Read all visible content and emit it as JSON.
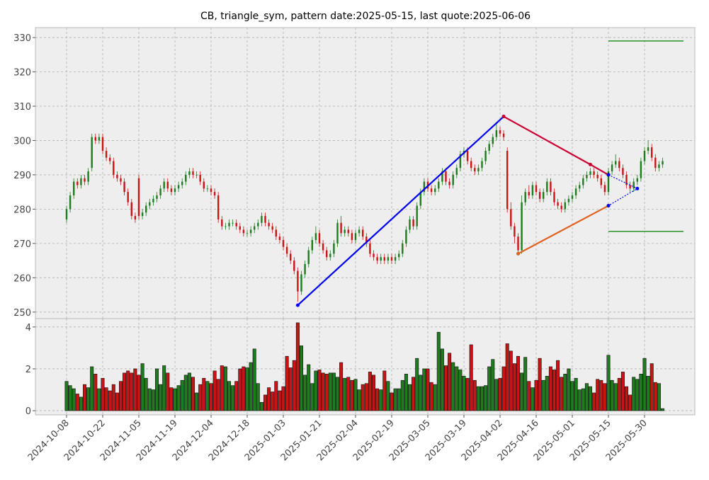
{
  "chart_data": {
    "type": "candlestick",
    "title": "CB, triangle_sym, pattern date:2025-05-15, last quote:2025-06-06",
    "x": [
      "2024-10-08",
      "2024-10-09",
      "2024-10-10",
      "2024-10-11",
      "2024-10-14",
      "2024-10-15",
      "2024-10-16",
      "2024-10-17",
      "2024-10-18",
      "2024-10-21",
      "2024-10-22",
      "2024-10-23",
      "2024-10-24",
      "2024-10-25",
      "2024-10-28",
      "2024-10-29",
      "2024-10-30",
      "2024-10-31",
      "2024-11-01",
      "2024-11-04",
      "2024-11-05",
      "2024-11-06",
      "2024-11-07",
      "2024-11-08",
      "2024-11-11",
      "2024-11-12",
      "2024-11-13",
      "2024-11-14",
      "2024-11-15",
      "2024-11-18",
      "2024-11-19",
      "2024-11-20",
      "2024-11-21",
      "2024-11-22",
      "2024-11-25",
      "2024-11-26",
      "2024-11-27",
      "2024-11-29",
      "2024-12-02",
      "2024-12-03",
      "2024-12-04",
      "2024-12-05",
      "2024-12-06",
      "2024-12-09",
      "2024-12-10",
      "2024-12-11",
      "2024-12-12",
      "2024-12-13",
      "2024-12-16",
      "2024-12-17",
      "2024-12-18",
      "2024-12-19",
      "2024-12-20",
      "2024-12-23",
      "2024-12-24",
      "2024-12-26",
      "2024-12-27",
      "2024-12-30",
      "2024-12-31",
      "2025-01-02",
      "2025-01-03",
      "2025-01-06",
      "2025-01-07",
      "2025-01-08",
      "2025-01-10",
      "2025-01-13",
      "2025-01-14",
      "2025-01-15",
      "2025-01-16",
      "2025-01-17",
      "2025-01-21",
      "2025-01-22",
      "2025-01-23",
      "2025-01-24",
      "2025-01-27",
      "2025-01-28",
      "2025-01-29",
      "2025-01-30",
      "2025-01-31",
      "2025-02-03",
      "2025-02-04",
      "2025-02-05",
      "2025-02-06",
      "2025-02-07",
      "2025-02-10",
      "2025-02-11",
      "2025-02-12",
      "2025-02-13",
      "2025-02-14",
      "2025-02-18",
      "2025-02-19",
      "2025-02-20",
      "2025-02-21",
      "2025-02-24",
      "2025-02-25",
      "2025-02-26",
      "2025-02-27",
      "2025-02-28",
      "2025-03-03",
      "2025-03-04",
      "2025-03-05",
      "2025-03-06",
      "2025-03-07",
      "2025-03-10",
      "2025-03-11",
      "2025-03-12",
      "2025-03-13",
      "2025-03-14",
      "2025-03-17",
      "2025-03-18",
      "2025-03-19",
      "2025-03-20",
      "2025-03-21",
      "2025-03-24",
      "2025-03-25",
      "2025-03-26",
      "2025-03-27",
      "2025-03-28",
      "2025-03-31",
      "2025-04-01",
      "2025-04-02",
      "2025-04-03",
      "2025-04-04",
      "2025-04-07",
      "2025-04-08",
      "2025-04-09",
      "2025-04-10",
      "2025-04-11",
      "2025-04-14",
      "2025-04-15",
      "2025-04-16",
      "2025-04-17",
      "2025-04-21",
      "2025-04-22",
      "2025-04-23",
      "2025-04-24",
      "2025-04-25",
      "2025-04-28",
      "2025-04-29",
      "2025-04-30",
      "2025-05-01",
      "2025-05-02",
      "2025-05-05",
      "2025-05-06",
      "2025-05-07",
      "2025-05-08",
      "2025-05-09",
      "2025-05-12",
      "2025-05-13",
      "2025-05-14",
      "2025-05-15",
      "2025-05-16",
      "2025-05-19",
      "2025-05-20",
      "2025-05-21",
      "2025-05-22",
      "2025-05-23",
      "2025-05-27",
      "2025-05-28",
      "2025-05-29",
      "2025-05-30",
      "2025-06-02",
      "2025-06-03",
      "2025-06-04",
      "2025-06-05",
      "2025-06-06"
    ],
    "open": [
      277,
      280,
      284,
      288,
      287,
      289,
      288,
      292,
      301,
      300,
      301,
      297,
      295,
      294,
      290,
      289,
      288,
      285,
      282,
      278,
      289,
      278,
      279,
      281,
      282,
      283,
      284,
      286,
      288,
      286,
      285,
      286,
      287,
      288,
      290,
      291,
      290,
      290,
      288,
      286,
      286,
      285,
      284,
      277,
      275,
      275,
      276,
      276,
      275,
      274,
      273,
      273,
      274,
      275,
      276,
      278,
      276,
      275,
      274,
      272,
      271,
      269,
      267,
      265,
      262,
      256,
      261,
      264,
      268,
      271,
      273,
      270,
      268,
      266,
      267,
      270,
      276,
      273,
      274,
      273,
      271,
      273,
      274,
      272,
      270,
      267,
      266,
      265,
      266,
      265,
      266,
      265,
      266,
      267,
      270,
      274,
      277,
      275,
      281,
      285,
      288,
      286,
      285,
      286,
      288,
      291,
      288,
      287,
      290,
      292,
      296,
      297,
      294,
      292,
      291,
      292,
      294,
      297,
      299,
      301,
      303,
      302,
      297,
      280,
      275,
      272,
      268,
      282,
      285,
      284,
      287,
      285,
      283,
      285,
      288,
      285,
      282,
      281,
      280,
      282,
      283,
      284,
      286,
      287,
      289,
      290,
      291,
      290,
      289,
      287,
      285,
      291,
      293,
      294,
      292,
      290,
      287,
      286,
      288,
      289,
      294,
      297,
      298,
      295,
      292,
      293
    ],
    "high": [
      281,
      285,
      289,
      289,
      290,
      290,
      292,
      302,
      302,
      302,
      302,
      298,
      296,
      295,
      291,
      290,
      289,
      286,
      283,
      279,
      290,
      280,
      282,
      283,
      284,
      285,
      287,
      289,
      289,
      287,
      287,
      288,
      289,
      291,
      292,
      292,
      291,
      291,
      289,
      287,
      287,
      286,
      285,
      278,
      276,
      277,
      277,
      277,
      276,
      275,
      274,
      275,
      276,
      277,
      279,
      279,
      277,
      276,
      275,
      273,
      272,
      270,
      268,
      266,
      263,
      262,
      265,
      269,
      272,
      275,
      274,
      271,
      269,
      268,
      271,
      277,
      278,
      275,
      275,
      274,
      274,
      275,
      275,
      273,
      271,
      268,
      267,
      267,
      267,
      267,
      267,
      267,
      268,
      271,
      275,
      278,
      278,
      282,
      286,
      289,
      289,
      287,
      287,
      289,
      292,
      292,
      289,
      291,
      293,
      297,
      298,
      298,
      295,
      293,
      293,
      295,
      298,
      300,
      302,
      305,
      304,
      303,
      298,
      282,
      276,
      273,
      284,
      286,
      287,
      288,
      288,
      286,
      286,
      289,
      289,
      286,
      283,
      282,
      283,
      284,
      285,
      287,
      288,
      290,
      291,
      292,
      292,
      291,
      290,
      288,
      292,
      294,
      296,
      295,
      293,
      291,
      288,
      289,
      290,
      295,
      298,
      300,
      299,
      296,
      294,
      295
    ],
    "low": [
      276,
      279,
      283,
      286,
      286,
      287,
      287,
      291,
      299,
      299,
      296,
      294,
      293,
      289,
      288,
      287,
      284,
      281,
      277,
      276,
      277,
      277,
      278,
      280,
      281,
      282,
      283,
      285,
      285,
      284,
      284,
      285,
      286,
      287,
      289,
      289,
      289,
      287,
      285,
      285,
      284,
      283,
      276,
      274,
      274,
      274,
      275,
      274,
      273,
      272,
      272,
      272,
      273,
      274,
      275,
      275,
      274,
      273,
      271,
      270,
      268,
      266,
      264,
      261,
      253,
      255,
      260,
      263,
      267,
      270,
      269,
      267,
      265,
      265,
      266,
      269,
      272,
      272,
      272,
      270,
      270,
      272,
      271,
      269,
      266,
      265,
      264,
      264,
      264,
      264,
      264,
      264,
      265,
      266,
      269,
      273,
      274,
      274,
      280,
      284,
      285,
      284,
      284,
      285,
      287,
      287,
      286,
      286,
      289,
      291,
      295,
      293,
      291,
      290,
      290,
      291,
      293,
      296,
      298,
      300,
      301,
      300,
      279,
      274,
      270,
      267,
      267,
      281,
      283,
      283,
      284,
      282,
      282,
      284,
      284,
      281,
      280,
      279,
      279,
      281,
      282,
      283,
      285,
      286,
      288,
      289,
      289,
      288,
      286,
      284,
      284,
      290,
      292,
      291,
      289,
      286,
      285,
      285,
      287,
      288,
      293,
      296,
      294,
      291,
      291,
      292
    ],
    "close": [
      280,
      284,
      288,
      287,
      289,
      288,
      291,
      301,
      300,
      301,
      297,
      295,
      294,
      290,
      289,
      288,
      285,
      282,
      278,
      277,
      278,
      279,
      281,
      282,
      283,
      284,
      286,
      288,
      286,
      285,
      286,
      287,
      288,
      290,
      291,
      290,
      290,
      288,
      286,
      286,
      285,
      284,
      277,
      275,
      275,
      276,
      276,
      275,
      274,
      273,
      273,
      274,
      275,
      276,
      278,
      276,
      275,
      274,
      272,
      271,
      269,
      267,
      265,
      262,
      256,
      261,
      264,
      268,
      271,
      273,
      270,
      268,
      266,
      267,
      270,
      276,
      273,
      274,
      273,
      271,
      273,
      274,
      272,
      270,
      267,
      266,
      265,
      266,
      265,
      266,
      265,
      266,
      267,
      270,
      274,
      277,
      275,
      281,
      285,
      288,
      286,
      285,
      286,
      288,
      291,
      288,
      287,
      290,
      292,
      296,
      297,
      294,
      292,
      291,
      292,
      294,
      297,
      299,
      301,
      303,
      302,
      301,
      280,
      275,
      272,
      268,
      282,
      285,
      284,
      287,
      285,
      283,
      285,
      288,
      285,
      282,
      281,
      280,
      282,
      283,
      284,
      286,
      287,
      289,
      290,
      291,
      290,
      289,
      287,
      285,
      291,
      293,
      294,
      292,
      290,
      287,
      286,
      288,
      289,
      294,
      297,
      298,
      295,
      292,
      293,
      294
    ],
    "volume": [
      1.4,
      1.2,
      1.05,
      0.8,
      0.65,
      1.25,
      1.1,
      2.1,
      1.75,
      1.05,
      1.55,
      1.1,
      0.95,
      1.25,
      0.85,
      1.4,
      1.8,
      1.9,
      1.8,
      2.0,
      1.7,
      2.25,
      1.55,
      1.05,
      1.0,
      2.0,
      1.25,
      2.15,
      1.8,
      1.1,
      1.05,
      1.2,
      1.45,
      1.7,
      1.8,
      1.6,
      0.85,
      1.25,
      1.55,
      1.4,
      1.3,
      1.9,
      1.5,
      2.15,
      2.1,
      1.4,
      1.2,
      1.4,
      2.0,
      2.1,
      2.05,
      2.3,
      2.95,
      1.3,
      0.4,
      0.75,
      1.1,
      0.9,
      1.4,
      0.95,
      1.15,
      2.6,
      2.05,
      2.4,
      4.2,
      3.1,
      1.7,
      2.2,
      1.3,
      1.9,
      1.95,
      1.8,
      1.75,
      1.8,
      1.8,
      1.6,
      2.3,
      1.55,
      1.6,
      1.45,
      1.5,
      1.0,
      1.25,
      1.3,
      1.85,
      1.7,
      1.05,
      1.0,
      1.9,
      1.4,
      0.85,
      1.05,
      1.05,
      1.45,
      1.75,
      1.25,
      1.6,
      2.5,
      1.7,
      2.0,
      2.0,
      1.35,
      1.25,
      3.75,
      2.95,
      2.15,
      2.75,
      2.3,
      2.1,
      1.95,
      1.65,
      1.55,
      3.15,
      1.45,
      1.15,
      1.15,
      1.2,
      2.1,
      2.45,
      1.5,
      1.55,
      2.1,
      3.2,
      2.85,
      2.25,
      2.6,
      1.8,
      2.55,
      1.4,
      1.1,
      1.45,
      2.5,
      1.45,
      1.65,
      2.1,
      1.95,
      2.4,
      1.6,
      1.75,
      2.0,
      1.4,
      1.55,
      1.0,
      1.05,
      1.3,
      1.15,
      0.85,
      1.5,
      1.45,
      1.3,
      2.65,
      1.45,
      1.3,
      1.55,
      1.85,
      1.15,
      0.75,
      1.6,
      1.5,
      1.75,
      2.5,
      1.65,
      2.25,
      1.35,
      1.3,
      0.1
    ],
    "up_color": "#1e7b1e",
    "down_color": "#c81414",
    "xticks": [
      "2024-10-08",
      "2024-10-22",
      "2024-11-05",
      "2024-11-19",
      "2024-12-04",
      "2024-12-18",
      "2025-01-03",
      "2025-01-21",
      "2025-02-04",
      "2025-02-19",
      "2025-03-05",
      "2025-03-19",
      "2025-04-02",
      "2025-04-16",
      "2025-05-01",
      "2025-05-15",
      "2025-05-30"
    ],
    "ylim": [
      248.1,
      332.9
    ],
    "yticks": [
      250,
      260,
      270,
      280,
      290,
      300,
      310,
      320,
      330
    ],
    "volume_ylim": [
      -0.2,
      4.4
    ],
    "volume_yticks": [
      0,
      2,
      4
    ],
    "grid": true,
    "lines": [
      {
        "color": "#0000ee",
        "dash": false,
        "points": [
          [
            "2025-01-10",
            252
          ],
          [
            "2025-04-03",
            307
          ]
        ]
      },
      {
        "color": "#cc0033",
        "dash": false,
        "points": [
          [
            "2025-04-03",
            307
          ],
          [
            "2025-05-08",
            293
          ],
          [
            "2025-05-15",
            290
          ]
        ]
      },
      {
        "color": "#e06020",
        "dash": false,
        "points": [
          [
            "2025-04-09",
            267
          ],
          [
            "2025-05-15",
            281
          ]
        ]
      },
      {
        "color": "#0000ee",
        "dash": true,
        "points": [
          [
            "2025-05-15",
            290
          ],
          [
            "2025-05-28",
            286
          ],
          [
            "2025-05-15",
            281
          ]
        ]
      }
    ],
    "levels": {
      "color": "#008000",
      "start": "2025-05-15",
      "values": [
        329,
        273.5
      ]
    }
  }
}
